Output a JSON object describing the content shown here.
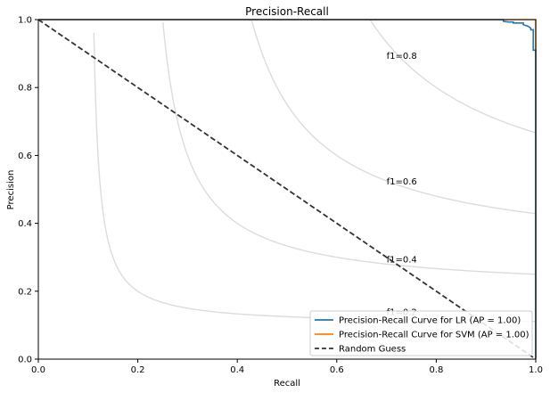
{
  "chart_data": {
    "type": "line",
    "title": "Precision-Recall",
    "xlabel": "Recall",
    "ylabel": "Precision",
    "xlim": [
      0,
      1
    ],
    "ylim": [
      0,
      1
    ],
    "xticks": [
      "0.0",
      "0.2",
      "0.4",
      "0.6",
      "0.8",
      "1.0"
    ],
    "yticks": [
      "0.0",
      "0.2",
      "0.4",
      "0.6",
      "0.8",
      "1.0"
    ],
    "grid": false,
    "legend_position": "bottom-right",
    "iso_f1": [
      {
        "f1": 0.2,
        "label": "f1=0.2",
        "label_x": 0.7,
        "label_y": 0.14
      },
      {
        "f1": 0.4,
        "label": "f1=0.4",
        "label_x": 0.7,
        "label_y": 0.295
      },
      {
        "f1": 0.6,
        "label": "f1=0.6",
        "label_x": 0.7,
        "label_y": 0.525
      },
      {
        "f1": 0.8,
        "label": "f1=0.8",
        "label_x": 0.7,
        "label_y": 0.895
      }
    ],
    "series": [
      {
        "name": "Precision-Recall Curve for LR (AP = 1.00)",
        "color": "#1f77b4",
        "x": [
          0.0,
          0.935,
          0.935,
          0.945,
          0.955,
          0.955,
          0.975,
          0.975,
          0.985,
          0.99,
          0.99,
          0.995,
          0.995,
          1.0,
          1.0
        ],
        "y": [
          1.0,
          1.0,
          0.995,
          0.993,
          0.993,
          0.99,
          0.99,
          0.985,
          0.98,
          0.975,
          0.97,
          0.97,
          0.91,
          0.91,
          0.0
        ]
      },
      {
        "name": "Precision-Recall Curve for SVM (AP = 1.00)",
        "color": "#ff7f0e",
        "x": [
          0.0,
          1.0,
          1.0
        ],
        "y": [
          1.0,
          1.0,
          0.0
        ]
      },
      {
        "name": "Random Guess",
        "color": "#333333",
        "dash": true,
        "x": [
          0.0,
          1.0
        ],
        "y": [
          1.0,
          0.0
        ]
      }
    ]
  }
}
